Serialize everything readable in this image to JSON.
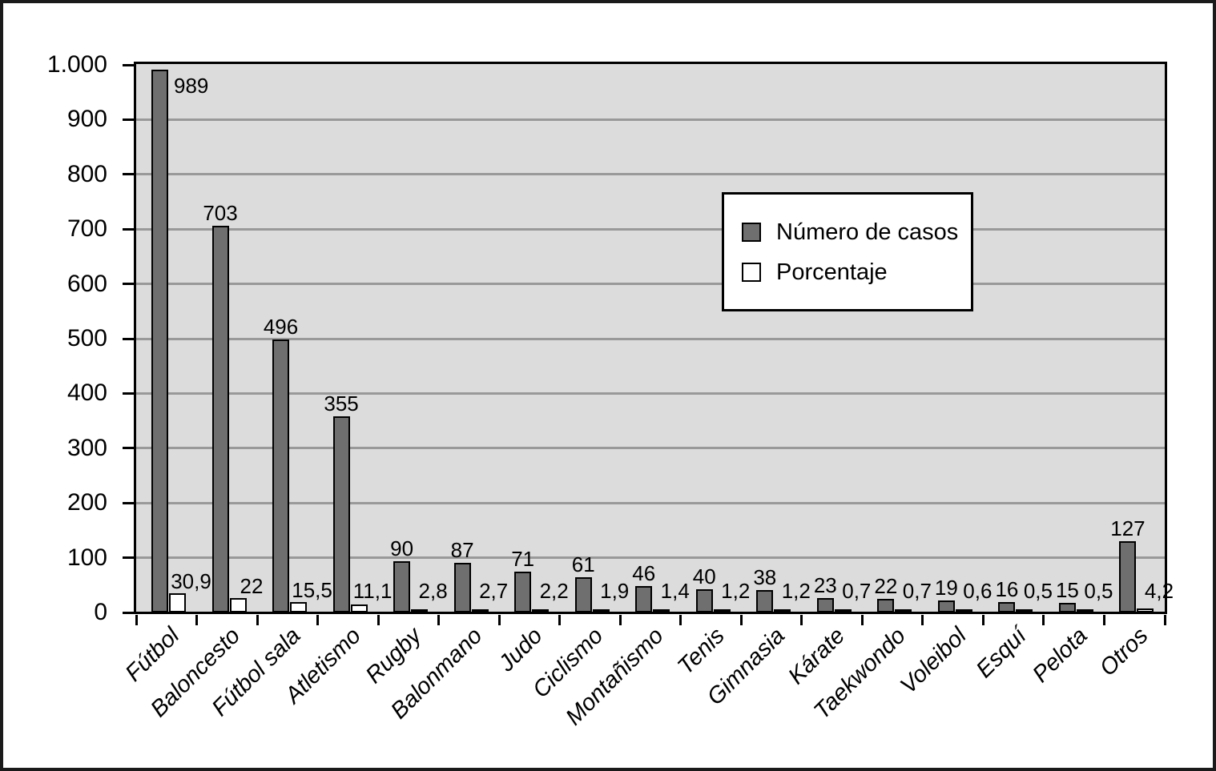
{
  "chart_data": {
    "type": "bar",
    "title": "",
    "categories": [
      "Fútbol",
      "Baloncesto",
      "Fútbol sala",
      "Atletismo",
      "Rugby",
      "Balonmano",
      "Judo",
      "Ciclismo",
      "Montañismo",
      "Tenis",
      "Gimnasia",
      "Kárate",
      "Taekwondo",
      "Voleibol",
      "Esquí",
      "Pelota",
      "Otros"
    ],
    "series": [
      {
        "name": "Número de casos",
        "color": "#6f6f6f",
        "values": [
          989,
          703,
          496,
          355,
          90,
          87,
          71,
          61,
          46,
          40,
          38,
          23,
          22,
          19,
          16,
          15,
          127
        ],
        "labels": [
          "989",
          "703",
          "496",
          "355",
          "90",
          "87",
          "71",
          "61",
          "46",
          "40",
          "38",
          "23",
          "22",
          "19",
          "16",
          "15",
          "127"
        ]
      },
      {
        "name": "Porcentaje",
        "color": "#ffffff",
        "values": [
          30.9,
          22,
          15.5,
          11.1,
          2.8,
          2.7,
          2.2,
          1.9,
          1.4,
          1.2,
          1.2,
          0.7,
          0.7,
          0.6,
          0.5,
          0.5,
          4.2
        ],
        "labels": [
          "30,9",
          "22",
          "15,5",
          "11,1",
          "2,8",
          "2,7",
          "2,2",
          "1,9",
          "1,4",
          "1,2",
          "1,2",
          "0,7",
          "0,7",
          "0,6",
          "0,5",
          "0,5",
          "4,2"
        ]
      }
    ],
    "xlabel": "",
    "ylabel": "",
    "ylim": [
      0,
      1000
    ],
    "yticks": [
      0,
      100,
      200,
      300,
      400,
      500,
      600,
      700,
      800,
      900,
      1000
    ],
    "ytick_labels": [
      "0",
      "100",
      "200",
      "300",
      "400",
      "500",
      "600",
      "700",
      "800",
      "900",
      "1.000"
    ],
    "grid": true,
    "legend": {
      "position": "upper-right-inside",
      "entries": [
        "Número de casos",
        "Porcentaje"
      ]
    },
    "colors": {
      "plot_bg": "#dcdcdc",
      "grid": "#999999",
      "bar_fill": "#6f6f6f",
      "bar_border": "#000000",
      "pct_fill": "#ffffff"
    }
  }
}
